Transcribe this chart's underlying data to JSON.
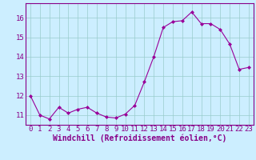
{
  "x": [
    0,
    1,
    2,
    3,
    4,
    5,
    6,
    7,
    8,
    9,
    10,
    11,
    12,
    13,
    14,
    15,
    16,
    17,
    18,
    19,
    20,
    21,
    22,
    23
  ],
  "y": [
    12.0,
    11.0,
    10.8,
    11.4,
    11.1,
    11.3,
    11.4,
    11.1,
    10.9,
    10.85,
    11.05,
    11.5,
    12.7,
    14.0,
    15.5,
    15.8,
    15.85,
    16.3,
    15.7,
    15.7,
    15.4,
    14.65,
    13.35,
    13.45
  ],
  "line_color": "#990099",
  "marker": "D",
  "marker_size": 2,
  "bg_color": "#cceeff",
  "grid_color": "#99cccc",
  "xlabel": "Windchill (Refroidissement éolien,°C)",
  "xlabel_color": "#880088",
  "tick_color": "#880088",
  "ylim": [
    10.5,
    16.75
  ],
  "xlim": [
    -0.5,
    23.5
  ],
  "yticks": [
    11,
    12,
    13,
    14,
    15,
    16
  ],
  "xticks": [
    0,
    1,
    2,
    3,
    4,
    5,
    6,
    7,
    8,
    9,
    10,
    11,
    12,
    13,
    14,
    15,
    16,
    17,
    18,
    19,
    20,
    21,
    22,
    23
  ],
  "tick_fontsize": 6.5,
  "xlabel_fontsize": 7
}
